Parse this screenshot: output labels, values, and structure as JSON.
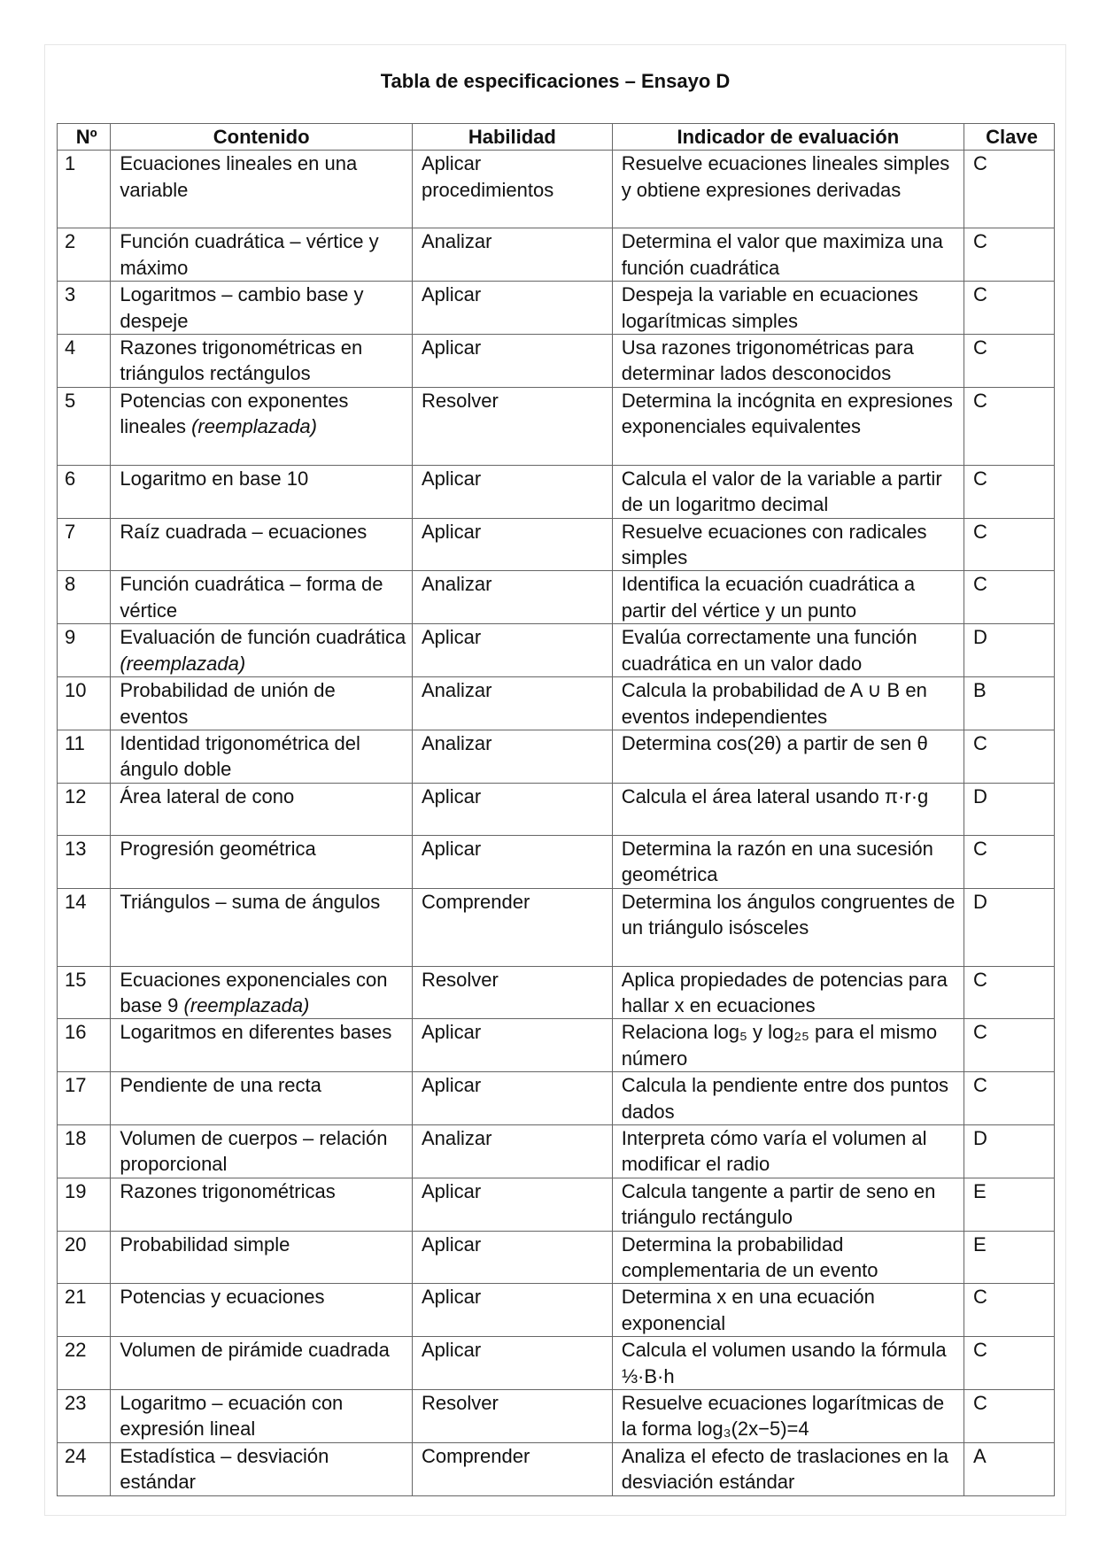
{
  "title": "Tabla de especificaciones – Ensayo D",
  "headers": [
    "Nº",
    "Contenido",
    "Habilidad",
    "Indicador de evaluación",
    "Clave"
  ],
  "rows": [
    {
      "n": "1",
      "contenido": "Ecuaciones lineales en una variable",
      "habilidad": "Aplicar procedimientos",
      "indicador": "Resuelve ecuaciones lineales simples y obtiene expresiones derivadas",
      "clave": "C"
    },
    {
      "n": "2",
      "contenido": "Función cuadrática – vértice y máximo",
      "habilidad": "Analizar",
      "indicador": "Determina el valor que maximiza una función cuadrática",
      "clave": "C"
    },
    {
      "n": "3",
      "contenido": "Logaritmos – cambio base y despeje",
      "habilidad": "Aplicar",
      "indicador": "Despeja la variable en ecuaciones logarítmicas simples",
      "clave": "C"
    },
    {
      "n": "4",
      "contenido": "Razones trigonométricas en triángulos rectángulos",
      "habilidad": "Aplicar",
      "indicador": "Usa razones trigonométricas para determinar lados desconocidos",
      "clave": "C"
    },
    {
      "n": "5",
      "contenido": "Potencias con exponentes lineales",
      "note": "(reemplazada)",
      "habilidad": "Resolver",
      "indicador": "Determina la incógnita en expresiones exponenciales equivalentes",
      "clave": "C"
    },
    {
      "n": "6",
      "contenido": "Logaritmo en base 10",
      "habilidad": "Aplicar",
      "indicador": "Calcula el valor de la variable a partir de un logaritmo decimal",
      "clave": "C"
    },
    {
      "n": "7",
      "contenido": "Raíz cuadrada – ecuaciones",
      "habilidad": "Aplicar",
      "indicador": "Resuelve ecuaciones con radicales simples",
      "clave": "C"
    },
    {
      "n": "8",
      "contenido": "Función cuadrática – forma de vértice",
      "habilidad": "Analizar",
      "indicador": "Identifica la ecuación cuadrática a partir del vértice y un punto",
      "clave": "C"
    },
    {
      "n": "9",
      "contenido": "Evaluación de función cuadrática",
      "note": "(reemplazada)",
      "habilidad": "Aplicar",
      "indicador": "Evalúa correctamente una función cuadrática en un valor dado",
      "clave": "D"
    },
    {
      "n": "10",
      "contenido": "Probabilidad de unión de eventos",
      "habilidad": "Analizar",
      "indicador": "Calcula la probabilidad de A ∪ B en eventos independientes",
      "clave": "B"
    },
    {
      "n": "11",
      "contenido": "Identidad trigonométrica del ángulo doble",
      "habilidad": "Analizar",
      "indicador": "Determina cos(2θ) a partir de sen θ",
      "clave": "C"
    },
    {
      "n": "12",
      "contenido": "Área lateral de cono",
      "habilidad": "Aplicar",
      "indicador": "Calcula el área lateral usando π·r·g",
      "clave": "D"
    },
    {
      "n": "13",
      "contenido": "Progresión geométrica",
      "habilidad": "Aplicar",
      "indicador": "Determina la razón en una sucesión geométrica",
      "clave": "C"
    },
    {
      "n": "14",
      "contenido": "Triángulos – suma de ángulos",
      "habilidad": "Comprender",
      "indicador": "Determina los ángulos congruentes de un triángulo isósceles",
      "clave": "D"
    },
    {
      "n": "15",
      "contenido": "Ecuaciones exponenciales con base 9",
      "note": "(reemplazada)",
      "habilidad": "Resolver",
      "indicador": "Aplica propiedades de potencias para hallar x en ecuaciones",
      "clave": "C"
    },
    {
      "n": "16",
      "contenido": "Logaritmos en diferentes bases",
      "habilidad": "Aplicar",
      "indicador": "Relaciona log₅ y log₂₅ para el mismo número",
      "clave": "C"
    },
    {
      "n": "17",
      "contenido": "Pendiente de una recta",
      "habilidad": "Aplicar",
      "indicador": "Calcula la pendiente entre dos puntos dados",
      "clave": "C"
    },
    {
      "n": "18",
      "contenido": "Volumen de cuerpos – relación proporcional",
      "habilidad": "Analizar",
      "indicador": "Interpreta cómo varía el volumen al modificar el radio",
      "clave": "D"
    },
    {
      "n": "19",
      "contenido": "Razones trigonométricas",
      "habilidad": "Aplicar",
      "indicador": "Calcula tangente a partir de seno en triángulo rectángulo",
      "clave": "E"
    },
    {
      "n": "20",
      "contenido": "Probabilidad simple",
      "habilidad": "Aplicar",
      "indicador": "Determina la probabilidad complementaria de un evento",
      "clave": "E"
    },
    {
      "n": "21",
      "contenido": "Potencias y ecuaciones",
      "habilidad": "Aplicar",
      "indicador": "Determina x en una ecuación exponencial",
      "clave": "C"
    },
    {
      "n": "22",
      "contenido": "Volumen de pirámide cuadrada",
      "habilidad": "Aplicar",
      "indicador": "Calcula el volumen usando la fórmula ⅓·B·h",
      "clave": "C"
    },
    {
      "n": "23",
      "contenido": "Logaritmo – ecuación con expresión lineal",
      "habilidad": "Resolver",
      "indicador": "Resuelve ecuaciones logarítmicas de la forma log₃(2x−5)=4",
      "clave": "C"
    },
    {
      "n": "24",
      "contenido": "Estadística – desviación estándar",
      "habilidad": "Comprender",
      "indicador": "Analiza el efecto de traslaciones en la desviación estándar",
      "clave": "A"
    }
  ]
}
